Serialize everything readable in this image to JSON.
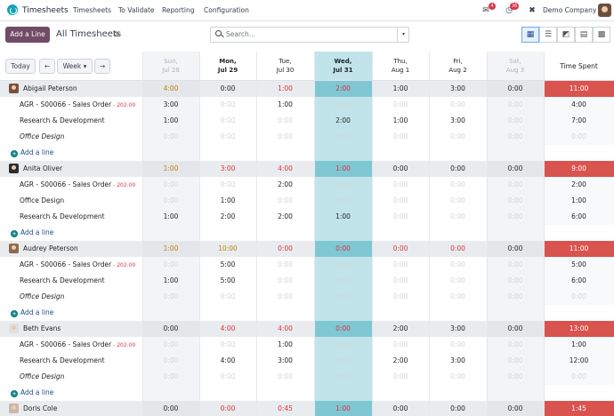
{
  "navbar": {
    "app_name": "Timesheets",
    "menu": [
      "Timesheets",
      "To Validate",
      "Reporting",
      "Configuration"
    ],
    "messages_badge": "4",
    "activities_badge": "26",
    "company": "Demo Company"
  },
  "control": {
    "add_button": "Add a Line",
    "view_title": "All Timesheets",
    "search_placeholder": "Search..."
  },
  "nav_buttons": {
    "today": "Today",
    "period": "Week"
  },
  "columns": [
    {
      "l1": "Sun,",
      "l2": "Jul 28",
      "kind": "weekend"
    },
    {
      "l1": "Mon,",
      "l2": "Jul 29",
      "kind": "bold"
    },
    {
      "l1": "Tue,",
      "l2": "Jul 30",
      "kind": "normal"
    },
    {
      "l1": "Wed,",
      "l2": "Jul 31",
      "kind": "today"
    },
    {
      "l1": "Thu,",
      "l2": "Aug 1",
      "kind": "normal"
    },
    {
      "l1": "Fri,",
      "l2": "Aug 2",
      "kind": "normal"
    },
    {
      "l1": "Sat,",
      "l2": "Aug 3",
      "kind": "weekend"
    }
  ],
  "total_header": "Time Spent",
  "add_line_label": "Add a line",
  "groups": [
    {
      "name": "Abigail Peterson",
      "avatar_color": "#7a4f3a",
      "totals": [
        [
          "4:00",
          "warn"
        ],
        [
          "0:00",
          "norm"
        ],
        [
          "1:00",
          "err"
        ],
        [
          "2:00",
          "err"
        ],
        [
          "1:00",
          "norm"
        ],
        [
          "3:00",
          "norm"
        ],
        [
          "0:00",
          "norm"
        ]
      ],
      "grand_total": "11:00",
      "lines": [
        {
          "label": "AGR - S00066 - Sales Order",
          "so": "- 202:00",
          "italic": false,
          "vals": [
            "3:00",
            "0:00",
            "1:00",
            "0:00",
            "0:00",
            "0:00",
            "0:00"
          ],
          "total": "4:00"
        },
        {
          "label": "Research & Development",
          "so": "",
          "italic": false,
          "vals": [
            "1:00",
            "0:00",
            "0:00",
            "2:00",
            "1:00",
            "3:00",
            "0:00"
          ],
          "total": "7:00"
        },
        {
          "label": "Office Design",
          "so": "",
          "italic": true,
          "vals": [
            "0:00",
            "0:00",
            "0:00",
            "0:00",
            "0:00",
            "0:00",
            "0:00"
          ],
          "total": "0:00"
        }
      ]
    },
    {
      "name": "Anita Oliver",
      "avatar_color": "#2d2d2d",
      "totals": [
        [
          "1:00",
          "warn"
        ],
        [
          "3:00",
          "err"
        ],
        [
          "4:00",
          "err"
        ],
        [
          "1:00",
          "err"
        ],
        [
          "0:00",
          "norm"
        ],
        [
          "0:00",
          "norm"
        ],
        [
          "0:00",
          "norm"
        ]
      ],
      "grand_total": "9:00",
      "lines": [
        {
          "label": "AGR - S00066 - Sales Order",
          "so": "- 202:00",
          "italic": false,
          "vals": [
            "0:00",
            "0:00",
            "2:00",
            "0:00",
            "0:00",
            "0:00",
            "0:00"
          ],
          "total": "2:00"
        },
        {
          "label": "Office Design",
          "so": "",
          "italic": false,
          "vals": [
            "0:00",
            "1:00",
            "0:00",
            "0:00",
            "0:00",
            "0:00",
            "0:00"
          ],
          "total": "1:00"
        },
        {
          "label": "Research & Development",
          "so": "",
          "italic": false,
          "vals": [
            "1:00",
            "2:00",
            "2:00",
            "1:00",
            "0:00",
            "0:00",
            "0:00"
          ],
          "total": "6:00"
        }
      ]
    },
    {
      "name": "Audrey Peterson",
      "avatar_color": "#8b6a4a",
      "totals": [
        [
          "1:00",
          "warn"
        ],
        [
          "10:00",
          "warn"
        ],
        [
          "0:00",
          "err"
        ],
        [
          "0:00",
          "err"
        ],
        [
          "0:00",
          "err"
        ],
        [
          "0:00",
          "err"
        ],
        [
          "0:00",
          "norm"
        ]
      ],
      "grand_total": "11:00",
      "lines": [
        {
          "label": "AGR - S00066 - Sales Order",
          "so": "- 202:00",
          "italic": false,
          "vals": [
            "0:00",
            "5:00",
            "0:00",
            "0:00",
            "0:00",
            "0:00",
            "0:00"
          ],
          "total": "5:00"
        },
        {
          "label": "Research & Development",
          "so": "",
          "italic": false,
          "vals": [
            "1:00",
            "5:00",
            "0:00",
            "0:00",
            "0:00",
            "0:00",
            "0:00"
          ],
          "total": "6:00"
        },
        {
          "label": "Office Design",
          "so": "",
          "italic": true,
          "vals": [
            "0:00",
            "0:00",
            "0:00",
            "0:00",
            "0:00",
            "0:00",
            "0:00"
          ],
          "total": "0:00"
        }
      ]
    },
    {
      "name": "Beth Evans",
      "avatar_color": "#e0e0e0",
      "totals": [
        [
          "0:00",
          "norm"
        ],
        [
          "4:00",
          "err"
        ],
        [
          "4:00",
          "err"
        ],
        [
          "0:00",
          "err"
        ],
        [
          "2:00",
          "norm"
        ],
        [
          "3:00",
          "norm"
        ],
        [
          "0:00",
          "norm"
        ]
      ],
      "grand_total": "13:00",
      "lines": [
        {
          "label": "AGR - S00066 - Sales Order",
          "so": "- 202:00",
          "italic": false,
          "vals": [
            "0:00",
            "0:00",
            "1:00",
            "0:00",
            "0:00",
            "0:00",
            "0:00"
          ],
          "total": "1:00"
        },
        {
          "label": "Research & Development",
          "so": "",
          "italic": false,
          "vals": [
            "0:00",
            "4:00",
            "3:00",
            "0:00",
            "2:00",
            "3:00",
            "0:00"
          ],
          "total": "12:00"
        },
        {
          "label": "Office Design",
          "so": "",
          "italic": true,
          "vals": [
            "0:00",
            "0:00",
            "0:00",
            "0:00",
            "0:00",
            "0:00",
            "0:00"
          ],
          "total": "0:00"
        }
      ]
    },
    {
      "name": "Doris Cole",
      "avatar_color": "#c9b8a8",
      "totals": [
        [
          "0:00",
          "norm"
        ],
        [
          "0:00",
          "err"
        ],
        [
          "0:45",
          "err"
        ],
        [
          "1:00",
          "err"
        ],
        [
          "0:00",
          "norm"
        ],
        [
          "0:00",
          "norm"
        ],
        [
          "0:00",
          "norm"
        ]
      ],
      "grand_total": "1:45",
      "lines": []
    }
  ]
}
